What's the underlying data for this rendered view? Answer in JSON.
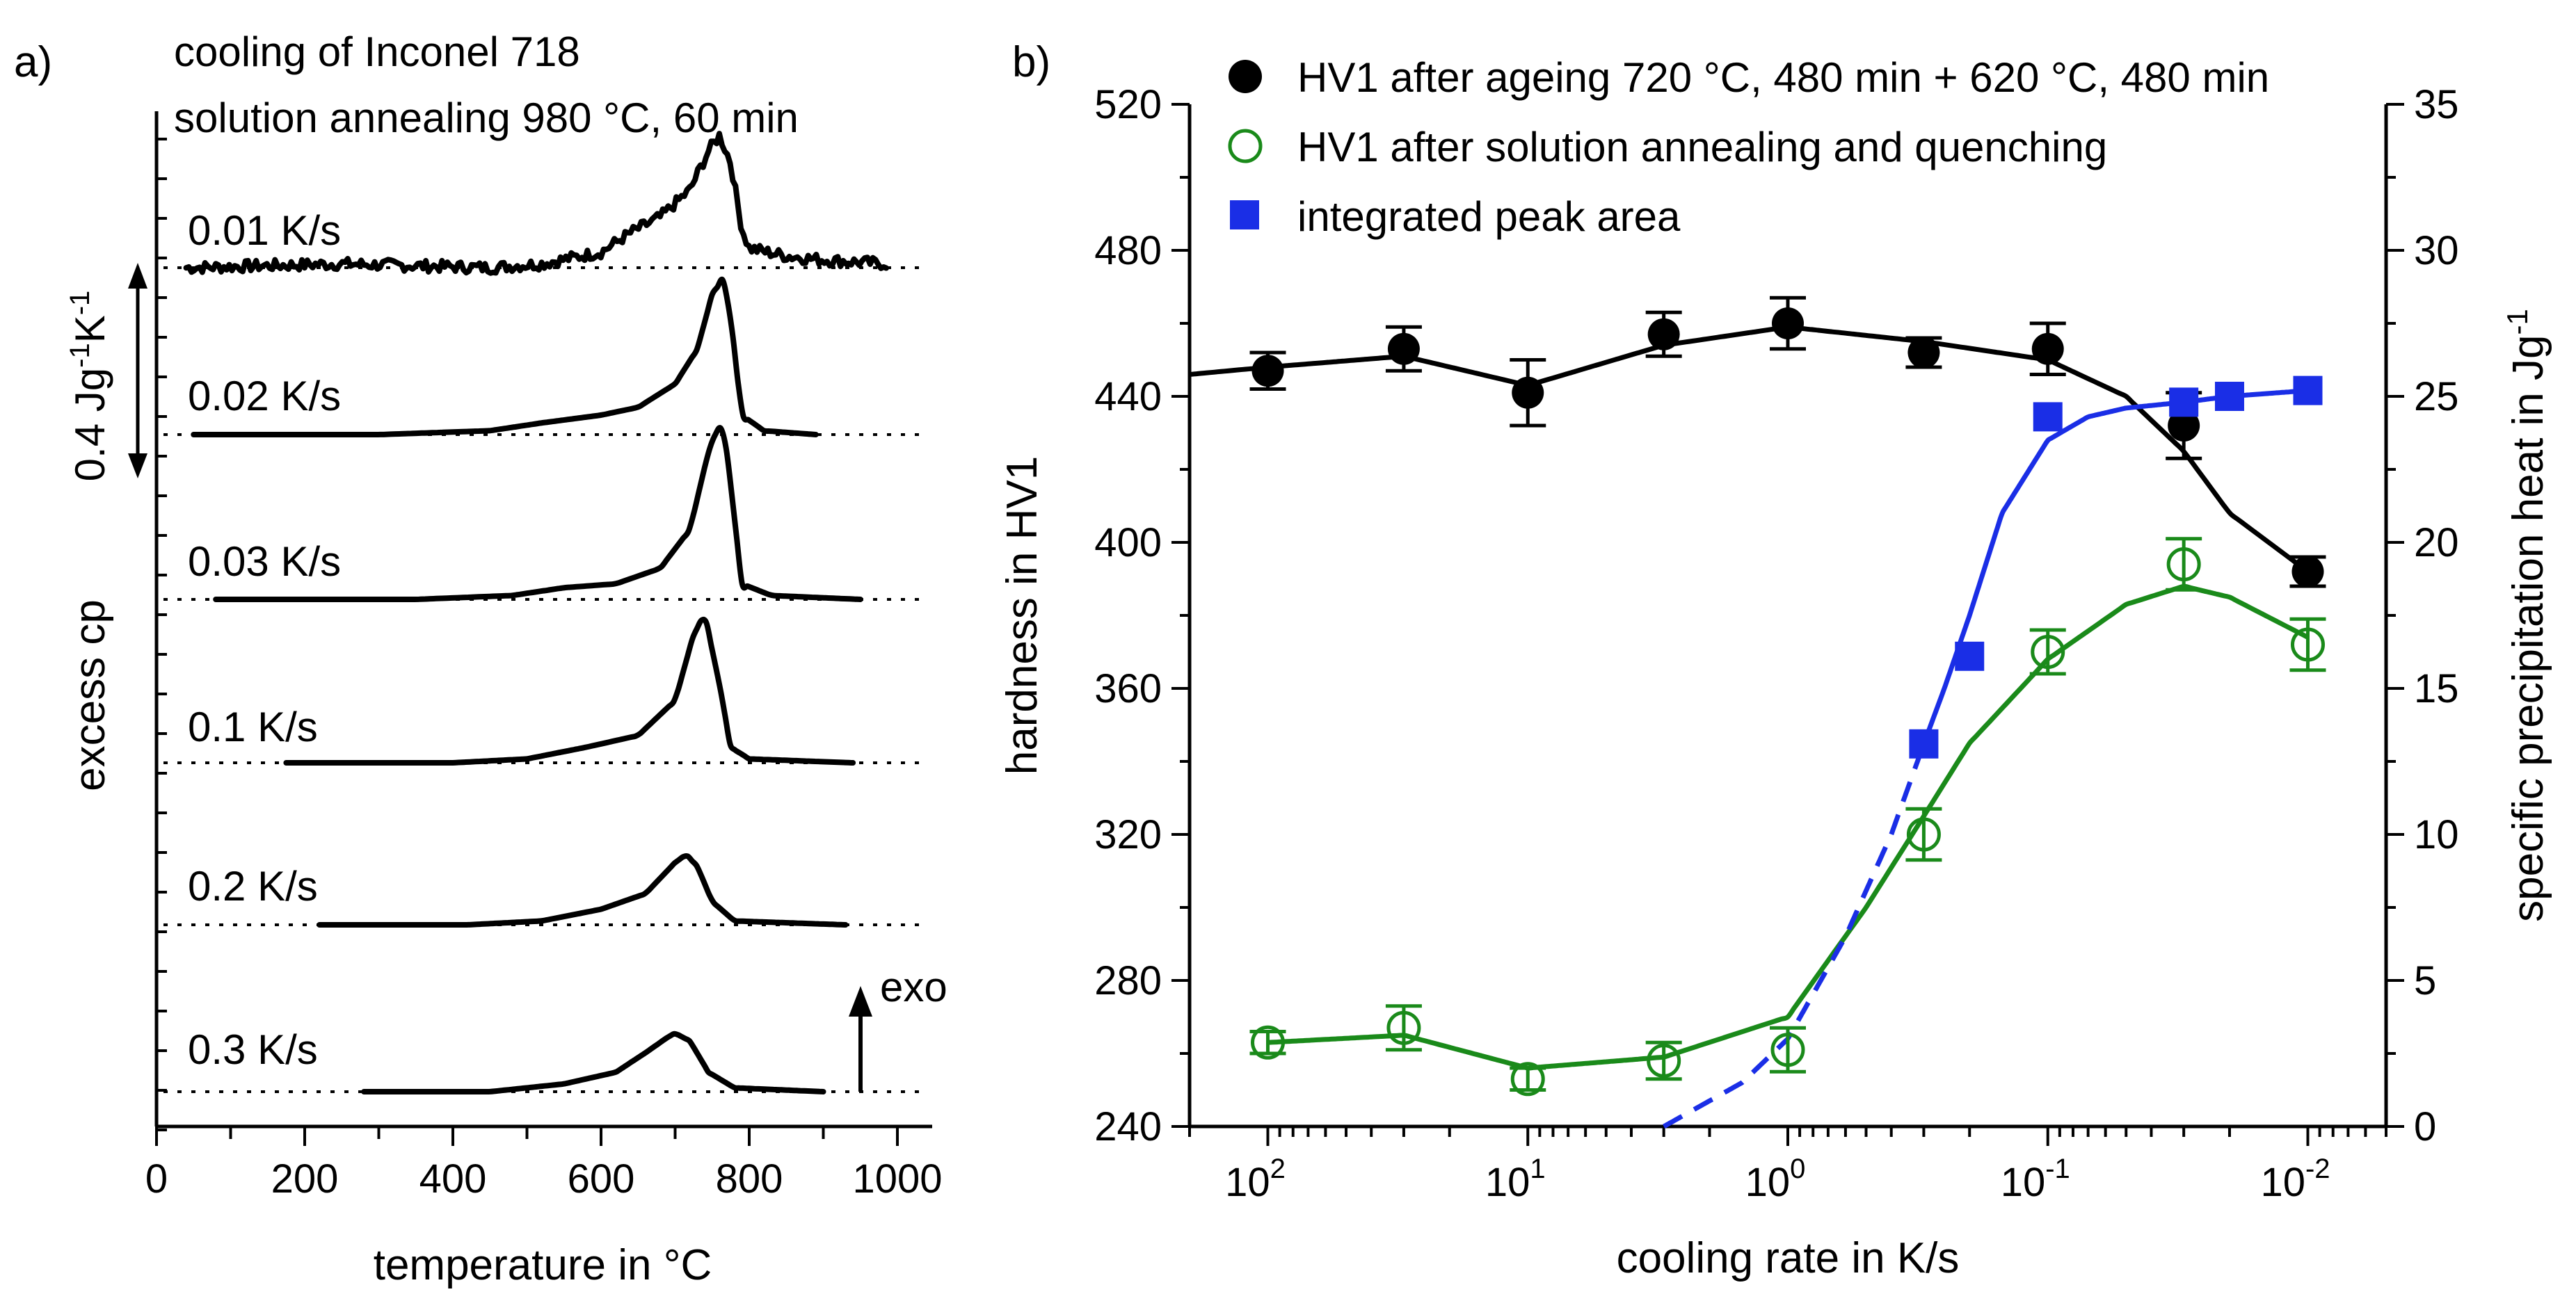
{
  "figure": {
    "panel_a_label": "a)",
    "panel_b_label": "b)"
  },
  "chart_data": [
    {
      "type": "line",
      "panel": "a)",
      "annotation_lines": [
        "cooling of Inconel 718",
        "solution annealing 980 °C, 60 min"
      ],
      "xlabel": "temperature in °C",
      "ylabel": "excess cp",
      "xlim": [
        0,
        1000
      ],
      "xticks": [
        0,
        200,
        400,
        600,
        800,
        1000
      ],
      "scale_bar": {
        "value": 0.4,
        "label_pre": "0.4 Jg",
        "sup1": "-1",
        "mid": "K",
        "sup2": "-1"
      },
      "exo_label": "exo",
      "series": [
        {
          "name": "0.01 K/s",
          "offset": 5,
          "noisy": true,
          "x": [
            40,
            250,
            450,
            520,
            600,
            640,
            680,
            720,
            745,
            760,
            775,
            790,
            800,
            850,
            900,
            985
          ],
          "y": [
            0.0,
            0.01,
            0.0,
            0.01,
            0.04,
            0.09,
            0.13,
            0.2,
            0.3,
            0.34,
            0.27,
            0.1,
            0.05,
            0.03,
            0.02,
            0.01
          ]
        },
        {
          "name": "0.02 K/s",
          "offset": 4,
          "noisy": false,
          "x": [
            50,
            300,
            450,
            520,
            600,
            650,
            700,
            730,
            750,
            765,
            775,
            790,
            820,
            890
          ],
          "y": [
            0.0,
            0.0,
            0.01,
            0.03,
            0.05,
            0.07,
            0.13,
            0.22,
            0.36,
            0.4,
            0.3,
            0.05,
            0.01,
            0.0
          ]
        },
        {
          "name": "0.03 K/s",
          "offset": 3,
          "noisy": false,
          "x": [
            80,
            350,
            480,
            550,
            620,
            680,
            720,
            745,
            760,
            770,
            790,
            830,
            950
          ],
          "y": [
            0.0,
            0.0,
            0.01,
            0.03,
            0.04,
            0.08,
            0.18,
            0.38,
            0.45,
            0.38,
            0.04,
            0.01,
            0.0
          ]
        },
        {
          "name": "0.1 K/s",
          "offset": 2,
          "noisy": false,
          "x": [
            175,
            400,
            500,
            580,
            650,
            700,
            725,
            740,
            760,
            775,
            800,
            940
          ],
          "y": [
            0.0,
            0.0,
            0.01,
            0.04,
            0.07,
            0.16,
            0.33,
            0.38,
            0.2,
            0.04,
            0.01,
            0.0
          ]
        },
        {
          "name": "0.2 K/s",
          "offset": 1,
          "noisy": false,
          "x": [
            220,
            420,
            520,
            600,
            660,
            700,
            715,
            730,
            750,
            780,
            930
          ],
          "y": [
            0.0,
            0.0,
            0.01,
            0.04,
            0.08,
            0.16,
            0.18,
            0.15,
            0.06,
            0.01,
            0.0
          ]
        },
        {
          "name": "0.3 K/s",
          "offset": 0,
          "noisy": false,
          "x": [
            280,
            450,
            550,
            620,
            660,
            690,
            700,
            720,
            745,
            780,
            900
          ],
          "y": [
            0.0,
            0.0,
            0.02,
            0.05,
            0.1,
            0.14,
            0.15,
            0.13,
            0.05,
            0.01,
            0.0
          ]
        }
      ]
    },
    {
      "type": "scatter",
      "panel": "b)",
      "xlabel": "cooling rate in K/s",
      "ylabel": "hardness in HV1",
      "y2label_pre": "specific precipitation heat in Jg",
      "y2label_sup": "-1",
      "x_scale": "log, reversed",
      "xlim": [
        200,
        0.005
      ],
      "xticks": [
        {
          "base": "10",
          "exp": "2",
          "value": 100
        },
        {
          "base": "10",
          "exp": "1",
          "value": 10
        },
        {
          "base": "10",
          "exp": "0",
          "value": 1
        },
        {
          "base": "10",
          "exp": "-1",
          "value": 0.1
        },
        {
          "base": "10",
          "exp": "-2",
          "value": 0.01
        }
      ],
      "ylim": [
        240,
        520
      ],
      "yticks": [
        240,
        280,
        320,
        360,
        400,
        440,
        480,
        520
      ],
      "y2lim": [
        0,
        35
      ],
      "y2ticks": [
        0,
        5,
        10,
        15,
        20,
        25,
        30,
        35
      ],
      "legend": [
        {
          "label": "HV1 after ageing 720 °C, 480 min + 620 °C, 480 min",
          "marker": "filled-circle",
          "color": "#000000"
        },
        {
          "label": "HV1 after solution annealing and quenching",
          "marker": "open-circle",
          "color": "#1a8a1a"
        },
        {
          "label": "integrated peak area",
          "marker": "filled-square",
          "color": "#1a2ee6"
        }
      ],
      "series": [
        {
          "name": "HV1 after ageing 720 °C, 480 min + 620 °C, 480 min",
          "axis": "left",
          "color": "#000000",
          "x": [
            100,
            30,
            10,
            3,
            1,
            0.3,
            0.1,
            0.03,
            0.01
          ],
          "y": [
            447,
            453,
            441,
            457,
            460,
            452,
            453,
            432,
            392
          ],
          "err": [
            5,
            6,
            9,
            6,
            7,
            4,
            7,
            9,
            4
          ],
          "fit_x": [
            200,
            100,
            30,
            10,
            3,
            1,
            0.3,
            0.1,
            0.05,
            0.03,
            0.02,
            0.01
          ],
          "fit_y": [
            446,
            448,
            451,
            443,
            454,
            459,
            455,
            450,
            440,
            425,
            408,
            392
          ]
        },
        {
          "name": "HV1 after solution annealing and quenching",
          "axis": "left",
          "color": "#1a8a1a",
          "x": [
            100,
            30,
            10,
            3,
            1,
            0.3,
            0.1,
            0.03,
            0.01
          ],
          "y": [
            263,
            267,
            253,
            258,
            261,
            320,
            370,
            394,
            372
          ],
          "err": [
            3,
            6,
            3,
            5,
            6,
            7,
            6,
            7,
            7
          ],
          "fit_x": [
            100,
            30,
            10,
            3,
            1,
            0.5,
            0.3,
            0.2,
            0.1,
            0.05,
            0.03,
            0.02,
            0.01
          ],
          "fit_y": [
            263,
            265,
            256,
            259,
            270,
            300,
            325,
            345,
            368,
            383,
            388,
            385,
            374
          ]
        },
        {
          "name": "integrated peak area",
          "axis": "right",
          "color": "#1a2ee6",
          "x": [
            0.3,
            0.2,
            0.1,
            0.03,
            0.02,
            0.01
          ],
          "y": [
            13.1,
            16.1,
            24.3,
            24.8,
            25.0,
            25.2
          ],
          "fit_x": [
            0.3,
            0.25,
            0.2,
            0.15,
            0.1,
            0.07,
            0.05,
            0.03,
            0.02,
            0.01
          ],
          "fit_y": [
            13.1,
            15.0,
            17.5,
            21.0,
            23.5,
            24.3,
            24.6,
            24.8,
            25.0,
            25.2
          ],
          "extrap_x": [
            3,
            1.5,
            1,
            0.6,
            0.4,
            0.3
          ],
          "extrap_y": [
            0,
            1.5,
            3.0,
            6.5,
            10.0,
            13.1
          ]
        }
      ]
    }
  ]
}
